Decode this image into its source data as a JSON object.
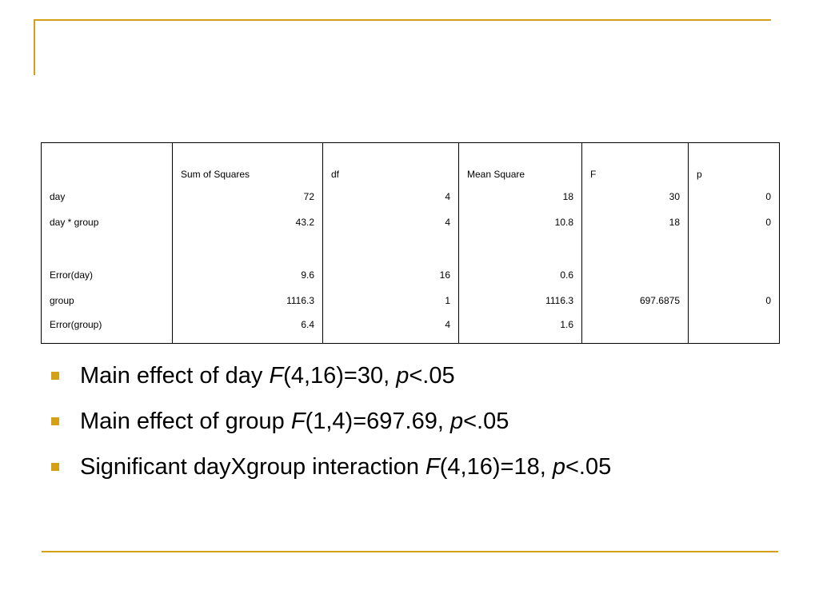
{
  "table": {
    "headers": [
      "",
      "Sum of Squares",
      "df",
      "Mean Square",
      "F",
      "p"
    ],
    "rows": [
      {
        "source": "day",
        "ss": "72",
        "df": "4",
        "ms": "18",
        "f": "30",
        "p": "0"
      },
      {
        "source": "day * group",
        "ss": "43.2",
        "df": "4",
        "ms": "10.8",
        "f": "18",
        "p": "0"
      },
      {
        "source": "",
        "ss": "",
        "df": "",
        "ms": "",
        "f": "",
        "p": ""
      },
      {
        "source": "Error(day)",
        "ss": "9.6",
        "df": "16",
        "ms": "0.6",
        "f": "",
        "p": ""
      },
      {
        "source": "group",
        "ss": "1116.3",
        "df": "1",
        "ms": "1116.3",
        "f": "697.6875",
        "p": "0"
      },
      {
        "source": "Error(group)",
        "ss": "6.4",
        "df": "4",
        "ms": "1.6",
        "f": "",
        "p": ""
      }
    ]
  },
  "bullets": [
    {
      "lead": "Main effect of day ",
      "f_symbol": "F",
      "stat": "(4,16)=30, ",
      "p_symbol": "p",
      "tail": "<.05"
    },
    {
      "lead": "Main effect of group ",
      "f_symbol": "F",
      "stat": "(1,4)=697.69, ",
      "p_symbol": "p",
      "tail": "<.05"
    },
    {
      "lead": "Significant dayXgroup interaction ",
      "f_symbol": "F",
      "stat": "(4,16)=18, ",
      "p_symbol": "p",
      "tail": "<.05"
    }
  ],
  "colors": {
    "accent": "#d4a017"
  }
}
